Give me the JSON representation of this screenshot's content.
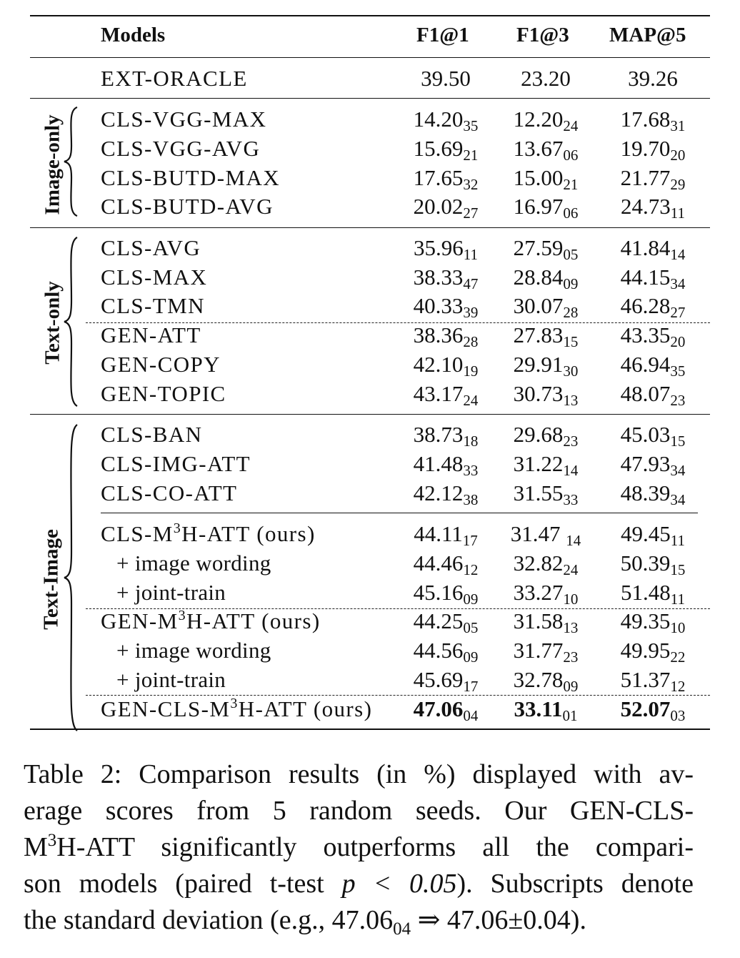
{
  "table": {
    "headers": {
      "models": "Models",
      "f1_1": "F1@1",
      "f1_3": "F1@3",
      "map_5": "MAP@5"
    },
    "groups": {
      "image_only": "Image-only",
      "text_only": "Text-only",
      "text_image": "Text-Image"
    },
    "rows": [
      {
        "model": "EXT-ORACLE",
        "f1_1": "39.50",
        "f1_3": "23.20",
        "map_5": "39.26"
      },
      {
        "model": "CLS-VGG-MAX",
        "f1_1": "14.20",
        "f1_1_sd": "35",
        "f1_3": "12.20",
        "f1_3_sd": "24",
        "map_5": "17.68",
        "map_5_sd": "31"
      },
      {
        "model": "CLS-VGG-AVG",
        "f1_1": "15.69",
        "f1_1_sd": "21",
        "f1_3": "13.67",
        "f1_3_sd": "06",
        "map_5": "19.70",
        "map_5_sd": "20"
      },
      {
        "model": "CLS-BUTD-MAX",
        "f1_1": "17.65",
        "f1_1_sd": "32",
        "f1_3": "15.00",
        "f1_3_sd": "21",
        "map_5": "21.77",
        "map_5_sd": "29"
      },
      {
        "model": "CLS-BUTD-AVG",
        "f1_1": "20.02",
        "f1_1_sd": "27",
        "f1_3": "16.97",
        "f1_3_sd": "06",
        "map_5": "24.73",
        "map_5_sd": "11"
      },
      {
        "model": "CLS-AVG",
        "f1_1": "35.96",
        "f1_1_sd": "11",
        "f1_3": "27.59",
        "f1_3_sd": "05",
        "map_5": "41.84",
        "map_5_sd": "14"
      },
      {
        "model": "CLS-MAX",
        "f1_1": "38.33",
        "f1_1_sd": "47",
        "f1_3": "28.84",
        "f1_3_sd": "09",
        "map_5": "44.15",
        "map_5_sd": "34"
      },
      {
        "model": "CLS-TMN",
        "f1_1": "40.33",
        "f1_1_sd": "39",
        "f1_3": "30.07",
        "f1_3_sd": "28",
        "map_5": "46.28",
        "map_5_sd": "27"
      },
      {
        "model": "GEN-ATT",
        "f1_1": "38.36",
        "f1_1_sd": "28",
        "f1_3": "27.83",
        "f1_3_sd": "15",
        "map_5": "43.35",
        "map_5_sd": "20"
      },
      {
        "model": "GEN-COPY",
        "f1_1": "42.10",
        "f1_1_sd": "19",
        "f1_3": "29.91",
        "f1_3_sd": "30",
        "map_5": "46.94",
        "map_5_sd": "35"
      },
      {
        "model": "GEN-TOPIC",
        "f1_1": "43.17",
        "f1_1_sd": "24",
        "f1_3": "30.73",
        "f1_3_sd": "13",
        "map_5": "48.07",
        "map_5_sd": "23"
      },
      {
        "model": "CLS-BAN",
        "f1_1": "38.73",
        "f1_1_sd": "18",
        "f1_3": "29.68",
        "f1_3_sd": "23",
        "map_5": "45.03",
        "map_5_sd": "15"
      },
      {
        "model": "CLS-IMG-ATT",
        "f1_1": "41.48",
        "f1_1_sd": "33",
        "f1_3": "31.22",
        "f1_3_sd": "14",
        "map_5": "47.93",
        "map_5_sd": "34"
      },
      {
        "model": "CLS-CO-ATT",
        "f1_1": "42.12",
        "f1_1_sd": "38",
        "f1_3": "31.55",
        "f1_3_sd": "33",
        "map_5": "48.39",
        "map_5_sd": "34"
      },
      {
        "model_pre": "CLS-M",
        "model_sup": "3",
        "model_post": "H-ATT (ours)",
        "f1_1": "44.11",
        "f1_1_sd": "17",
        "f1_3": "31.47 ",
        "f1_3_sd": "14",
        "map_5": "49.45",
        "map_5_sd": "11"
      },
      {
        "model": "+ image wording",
        "f1_1": "44.46",
        "f1_1_sd": "12",
        "f1_3": "32.82",
        "f1_3_sd": "24",
        "map_5": "50.39",
        "map_5_sd": "15"
      },
      {
        "model": "+ joint-train",
        "f1_1": "45.16",
        "f1_1_sd": "09",
        "f1_3": "33.27",
        "f1_3_sd": "10",
        "map_5": "51.48",
        "map_5_sd": "11"
      },
      {
        "model_pre": "GEN-M",
        "model_sup": "3",
        "model_post": "H-ATT (ours)",
        "f1_1": "44.25",
        "f1_1_sd": "05",
        "f1_3": "31.58",
        "f1_3_sd": "13",
        "map_5": "49.35",
        "map_5_sd": "10"
      },
      {
        "model": "+ image wording",
        "f1_1": "44.56",
        "f1_1_sd": "09",
        "f1_3": "31.77",
        "f1_3_sd": "23",
        "map_5": "49.95",
        "map_5_sd": "22"
      },
      {
        "model": "+ joint-train",
        "f1_1": "45.69",
        "f1_1_sd": "17",
        "f1_3": "32.78",
        "f1_3_sd": "09",
        "map_5": "51.37",
        "map_5_sd": "12"
      },
      {
        "model_pre": "GEN-CLS-M",
        "model_sup": "3",
        "model_post": "H-ATT (ours)",
        "f1_1": "47.06",
        "f1_1_sd": "04",
        "f1_3": "33.11",
        "f1_3_sd": "01",
        "map_5": "52.07",
        "map_5_sd": "03",
        "bold": true
      }
    ]
  },
  "caption": {
    "line1": "Table 2: Comparison results (in %) displayed with av-",
    "line2": "erage scores from 5 random seeds.  Our GEN-CLS-",
    "line3_pre": "M",
    "line3_sup": "3",
    "line3_post": "H-ATT significantly outperforms all the compari-",
    "line4_pre": "son models (paired t-test ",
    "line4_math": "p < 0.05",
    "line4_post": "). Subscripts denote",
    "line5_pre": "the standard deviation (e.g., 47.06",
    "line5_sub": "04",
    "line5_post": " ⇒ 47.06±0.04)."
  }
}
